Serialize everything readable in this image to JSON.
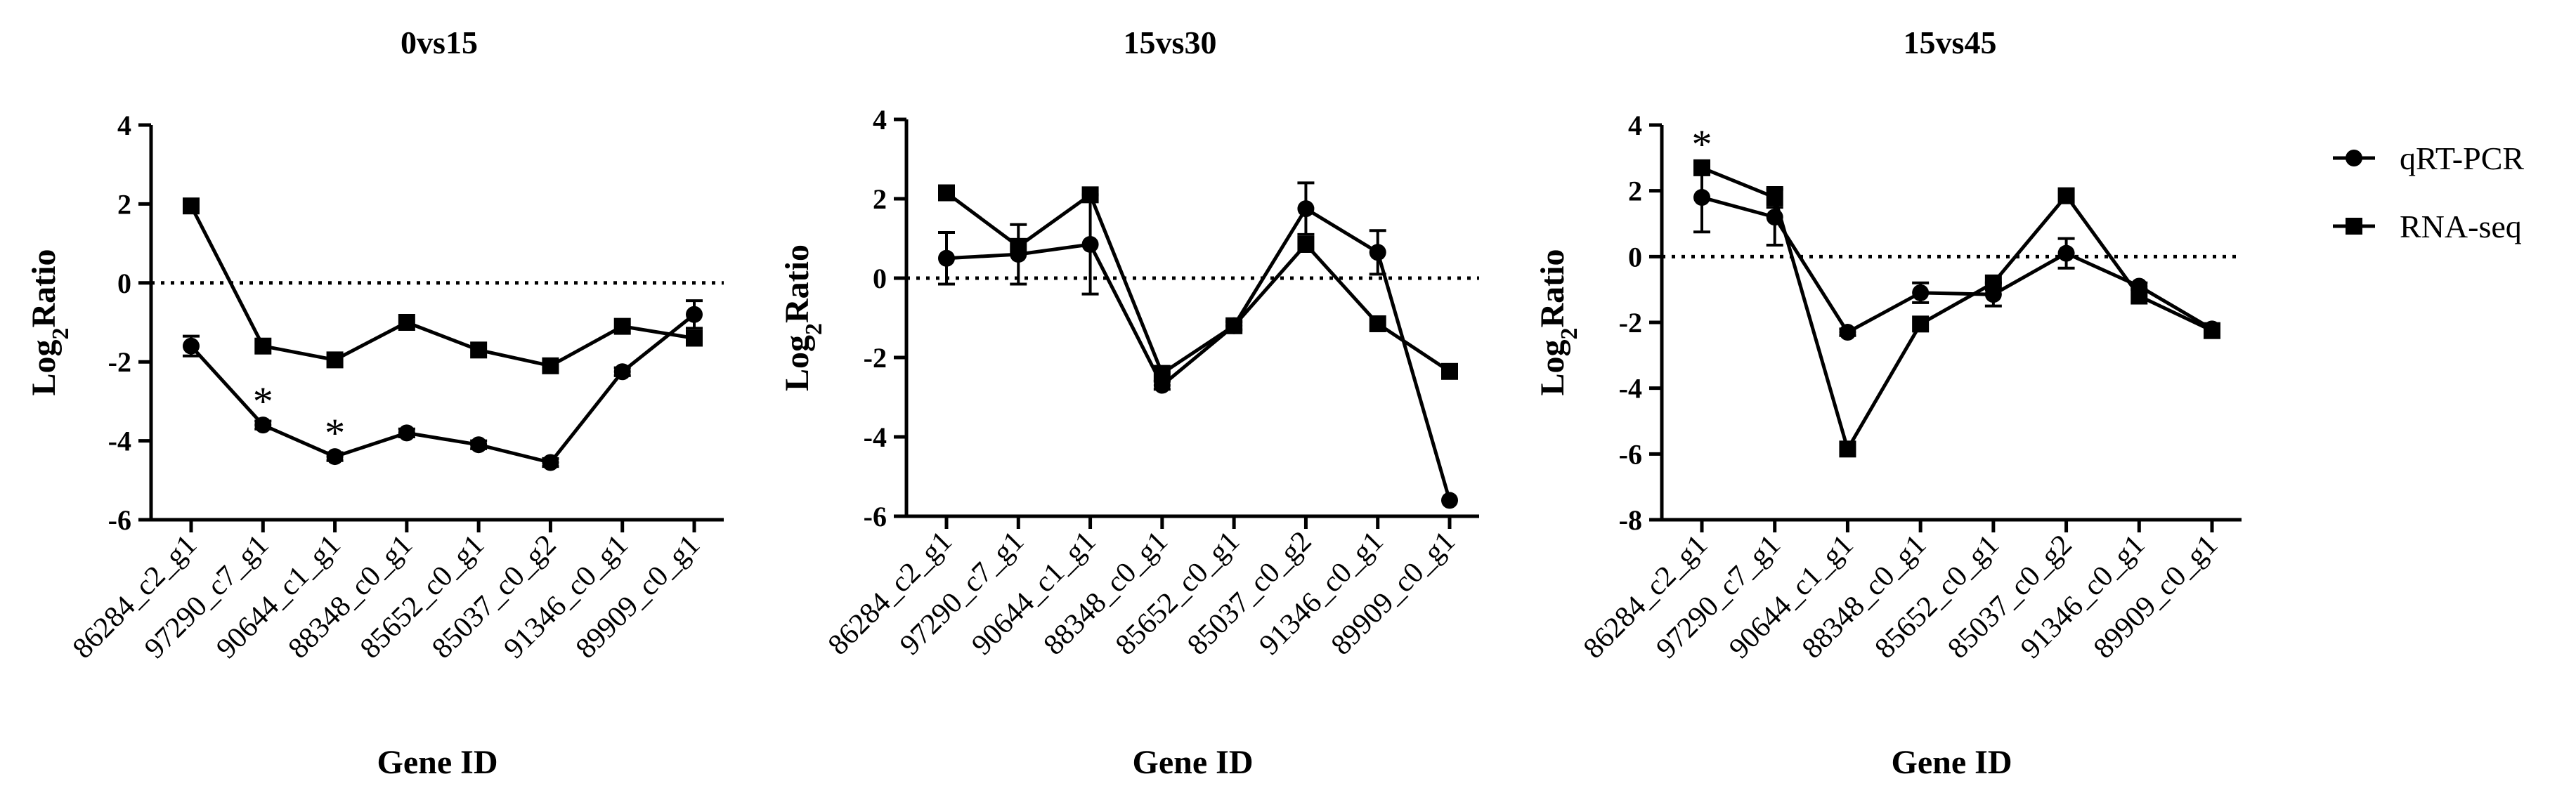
{
  "chart_data": [
    {
      "type": "line",
      "title": "0vs15",
      "xlabel": "Gene ID",
      "ylabel_main": "Log",
      "ylabel_sub": "2",
      "ylabel_rest": "Ratio",
      "ylim": [
        -6,
        4
      ],
      "yticks": [
        4,
        2,
        0,
        -2,
        -4,
        -6
      ],
      "yticklabels": [
        "4",
        "2",
        "0",
        "-2",
        "-4",
        "-6"
      ],
      "reference_line": 0,
      "categories": [
        "86284_c2_g1",
        "97290_c7_g1",
        "90644_c1_g1",
        "88348_c0_g1",
        "85652_c0_g1",
        "85037_c0_g2",
        "91346_c0_g1",
        "89909_c0_g1"
      ],
      "series": [
        {
          "name": "qRT-PCR",
          "marker": "circle",
          "values": [
            -1.6,
            -3.6,
            -4.4,
            -3.8,
            -4.1,
            -4.55,
            -2.25,
            -0.8
          ],
          "errors": [
            0.25,
            0.1,
            0.1,
            0.1,
            0.1,
            0.1,
            0.1,
            0.35
          ]
        },
        {
          "name": "RNA-seq",
          "marker": "square",
          "values": [
            1.95,
            -1.6,
            -1.95,
            -1.0,
            -1.7,
            -2.1,
            -1.1,
            -1.4
          ],
          "errors": [
            0,
            0,
            0,
            0,
            0,
            0,
            0,
            0
          ]
        }
      ],
      "annotations": [
        {
          "text": "*",
          "category_index": 1,
          "y": -3.6
        },
        {
          "text": "*",
          "category_index": 2,
          "y": -4.4
        }
      ]
    },
    {
      "type": "line",
      "title": "15vs30",
      "xlabel": "Gene ID",
      "ylabel_main": "Log",
      "ylabel_sub": "2",
      "ylabel_rest": "Ratio",
      "ylim": [
        -6,
        4
      ],
      "yticks": [
        4,
        2,
        0,
        -2,
        -4,
        -6
      ],
      "yticklabels": [
        "4",
        "2",
        "0",
        "-2",
        "-4",
        "-6"
      ],
      "reference_line": 0,
      "categories": [
        "86284_c2_g1",
        "97290_c7_g1",
        "90644_c1_g1",
        "88348_c0_g1",
        "85652_c0_g1",
        "85037_c0_g2",
        "91346_c0_g1",
        "89909_c0_g1"
      ],
      "series": [
        {
          "name": "qRT-PCR",
          "marker": "circle",
          "values": [
            0.5,
            0.6,
            0.85,
            -2.7,
            -1.2,
            1.75,
            0.65,
            -5.6
          ],
          "errors": [
            0.65,
            0.75,
            1.25,
            0.1,
            0.1,
            0.65,
            0.55,
            0
          ]
        },
        {
          "name": "RNA-seq",
          "marker": "square",
          "values": [
            2.15,
            0.8,
            2.1,
            -2.4,
            -1.2,
            0.85,
            -1.15,
            -2.35
          ],
          "errors": [
            0,
            0,
            0,
            0,
            0,
            0,
            0,
            0
          ]
        }
      ],
      "annotations": []
    },
    {
      "type": "line",
      "title": "15vs45",
      "xlabel": "Gene ID",
      "ylabel_main": "Log",
      "ylabel_sub": "2",
      "ylabel_rest": "Ratio",
      "ylim": [
        -8,
        4
      ],
      "yticks": [
        4,
        2,
        0,
        -2,
        -4,
        -6,
        -8
      ],
      "yticklabels": [
        "4",
        "2",
        "0",
        "-2",
        "-4",
        "-6",
        "-8"
      ],
      "reference_line": 0,
      "categories": [
        "86284_c2_g1",
        "97290_c7_g1",
        "90644_c1_g1",
        "88348_c0_g1",
        "85652_c0_g1",
        "85037_c0_g2",
        "91346_c0_g1",
        "89909_c0_g1"
      ],
      "series": [
        {
          "name": "qRT-PCR",
          "marker": "circle",
          "values": [
            1.8,
            1.2,
            -2.3,
            -1.1,
            -1.15,
            0.1,
            -0.9,
            -2.2
          ],
          "errors": [
            1.05,
            0.85,
            0.1,
            0.3,
            0.35,
            0.45,
            0.1,
            0.1
          ]
        },
        {
          "name": "RNA-seq",
          "marker": "square",
          "values": [
            2.7,
            1.8,
            -5.85,
            -2.05,
            -0.8,
            1.85,
            -1.2,
            -2.25
          ],
          "errors": [
            0,
            0.3,
            0,
            0,
            0,
            0,
            0,
            0
          ]
        }
      ],
      "annotations": [
        {
          "text": "*",
          "category_index": 0,
          "y": 2.7
        }
      ]
    }
  ],
  "legend": {
    "items": [
      {
        "label": "qRT-PCR",
        "marker": "circle"
      },
      {
        "label": "RNA-seq",
        "marker": "square"
      }
    ]
  },
  "colors": {
    "line": "#000000",
    "background": "#ffffff"
  }
}
